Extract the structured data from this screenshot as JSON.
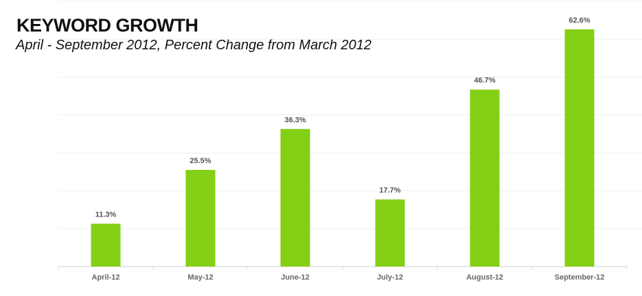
{
  "chart_data": {
    "type": "bar",
    "title": "KEYWORD GROWTH",
    "subtitle": "April - September 2012, Percent Change from March 2012",
    "categories": [
      "April-12",
      "May-12",
      "June-12",
      "July-12",
      "August-12",
      "September-12"
    ],
    "values": [
      11.3,
      25.5,
      36.3,
      17.7,
      46.7,
      62.6
    ],
    "data_labels": [
      "11.3%",
      "25.5%",
      "36.3%",
      "17.7%",
      "46.7%",
      "62.6%"
    ],
    "xlabel": "",
    "ylabel": "",
    "ylim": [
      0,
      70
    ],
    "grid_step": 10,
    "grid": true,
    "legend": "none",
    "bar_color": "#84d016"
  }
}
